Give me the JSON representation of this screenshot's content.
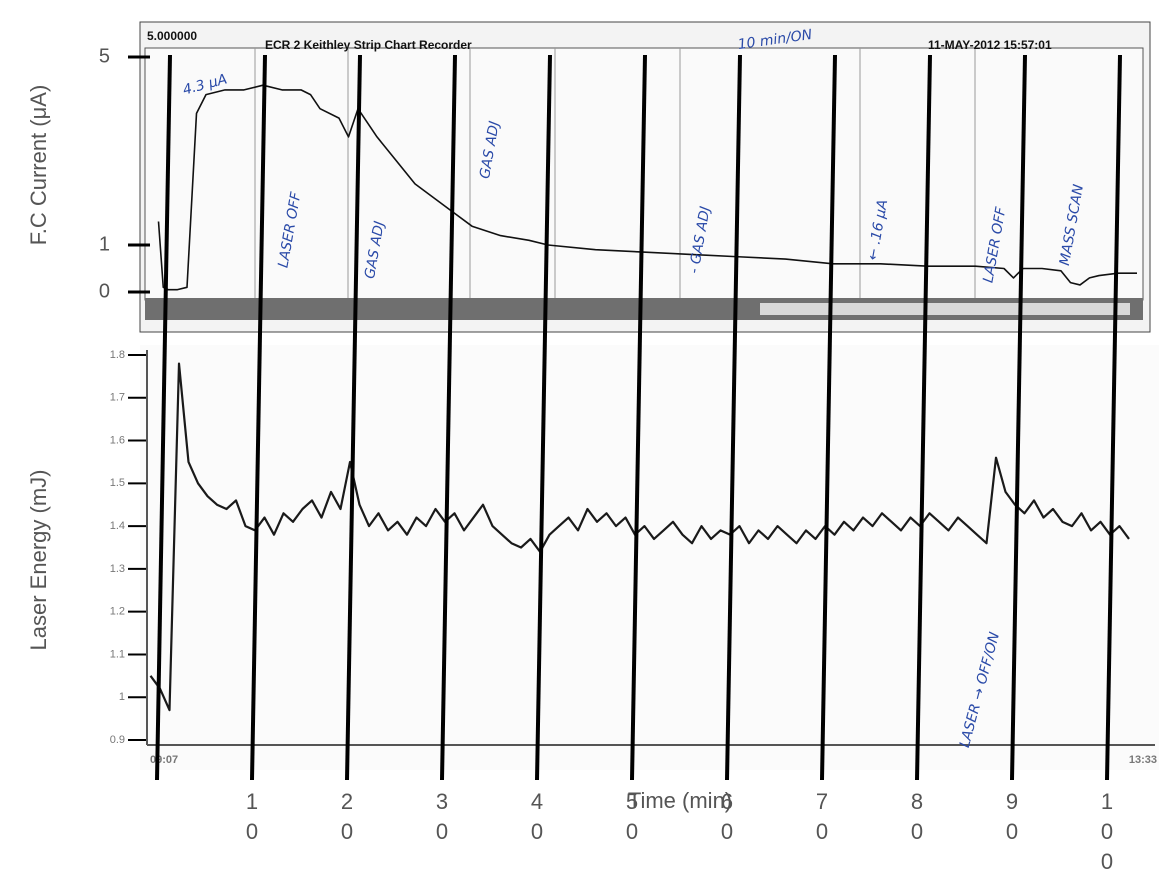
{
  "chart_data": [
    {
      "type": "line",
      "title": "ECR 2 Keithley Strip Chart Recorder",
      "header_left": "5.000000",
      "timestamp": "11-MAY-2012 15:57:01",
      "ylabel": "F.C Current (μA)",
      "annotations": [
        "10 min/ON",
        "4.3 μA",
        "LASER OFF",
        "GAS ADJ",
        "GAS ADJ",
        "- GAS ADJ",
        "← .16 μA",
        "LASER OFF",
        "MASS SCAN"
      ],
      "x": [
        -1,
        -0.5,
        0,
        1,
        2,
        3,
        4,
        6,
        8,
        10,
        12,
        14,
        15,
        16,
        18,
        19,
        20,
        21,
        22,
        24,
        26,
        28,
        30,
        32,
        35,
        38,
        40,
        45,
        50,
        55,
        60,
        65,
        70,
        75,
        80,
        85,
        88,
        89,
        90,
        92,
        94,
        95,
        96,
        97,
        98,
        100,
        102
      ],
      "series": [
        {
          "color": "#111111",
          "values": [
            1.5,
            0.1,
            0.05,
            0.05,
            0.1,
            3.8,
            4.2,
            4.3,
            4.3,
            4.4,
            4.3,
            4.3,
            4.2,
            3.9,
            3.7,
            3.3,
            3.9,
            3.6,
            3.3,
            2.8,
            2.3,
            2.0,
            1.7,
            1.4,
            1.2,
            1.1,
            1.0,
            0.9,
            0.85,
            0.8,
            0.75,
            0.7,
            0.6,
            0.6,
            0.55,
            0.55,
            0.5,
            0.3,
            0.5,
            0.5,
            0.45,
            0.2,
            0.15,
            0.3,
            0.35,
            0.4,
            0.4
          ]
        }
      ],
      "xlim": [
        -1.5,
        103
      ],
      "ylim": [
        0,
        5
      ],
      "yticks": [
        0,
        1,
        5
      ]
    },
    {
      "type": "line",
      "ylabel": "Laser Energy (mJ)",
      "xlabel": "Time (min)",
      "time_labels": [
        "09:07",
        "13:33"
      ],
      "annotations": [
        "LASER → OFF/ON"
      ],
      "x": [
        -1,
        0,
        1,
        2,
        3,
        4,
        5,
        6,
        7,
        8,
        9,
        10,
        11,
        12,
        13,
        14,
        15,
        16,
        17,
        18,
        19,
        20,
        21,
        22,
        23,
        24,
        25,
        26,
        27,
        28,
        29,
        30,
        31,
        32,
        33,
        34,
        35,
        36,
        37,
        38,
        39,
        40,
        41,
        42,
        43,
        44,
        45,
        46,
        47,
        48,
        49,
        50,
        51,
        52,
        53,
        54,
        55,
        56,
        57,
        58,
        59,
        60,
        61,
        62,
        63,
        64,
        65,
        66,
        67,
        68,
        69,
        70,
        71,
        72,
        73,
        74,
        75,
        76,
        77,
        78,
        79,
        80,
        81,
        82,
        83,
        84,
        85,
        86,
        87,
        88,
        89,
        90,
        91,
        92,
        93,
        94,
        95,
        96,
        97,
        98,
        99,
        100,
        101,
        102
      ],
      "series": [
        {
          "color": "#1a1a1a",
          "values": [
            1.05,
            1.02,
            0.97,
            1.78,
            1.55,
            1.5,
            1.47,
            1.45,
            1.44,
            1.46,
            1.4,
            1.39,
            1.42,
            1.38,
            1.43,
            1.41,
            1.44,
            1.46,
            1.42,
            1.48,
            1.44,
            1.55,
            1.45,
            1.4,
            1.43,
            1.39,
            1.41,
            1.38,
            1.42,
            1.4,
            1.44,
            1.41,
            1.43,
            1.39,
            1.42,
            1.45,
            1.4,
            1.38,
            1.36,
            1.35,
            1.37,
            1.34,
            1.38,
            1.4,
            1.42,
            1.39,
            1.44,
            1.41,
            1.43,
            1.4,
            1.42,
            1.38,
            1.4,
            1.37,
            1.39,
            1.41,
            1.38,
            1.36,
            1.4,
            1.37,
            1.39,
            1.38,
            1.4,
            1.36,
            1.39,
            1.37,
            1.4,
            1.38,
            1.36,
            1.39,
            1.37,
            1.4,
            1.38,
            1.41,
            1.39,
            1.42,
            1.4,
            1.43,
            1.41,
            1.39,
            1.42,
            1.4,
            1.43,
            1.41,
            1.39,
            1.42,
            1.4,
            1.38,
            1.36,
            1.56,
            1.48,
            1.45,
            1.43,
            1.46,
            1.42,
            1.44,
            1.41,
            1.4,
            1.43,
            1.39,
            1.41,
            1.38,
            1.4,
            1.37
          ]
        }
      ],
      "xlim": [
        -1.5,
        103
      ],
      "ylim": [
        0.9,
        1.8
      ],
      "yticks": [
        0.9,
        1,
        1.1,
        1.2,
        1.3,
        1.4,
        1.5,
        1.6,
        1.7,
        1.8
      ],
      "xticks": [
        {
          "value": 0,
          "label": null
        },
        10,
        20,
        30,
        40,
        50,
        60,
        70,
        80,
        90,
        100
      ]
    }
  ]
}
